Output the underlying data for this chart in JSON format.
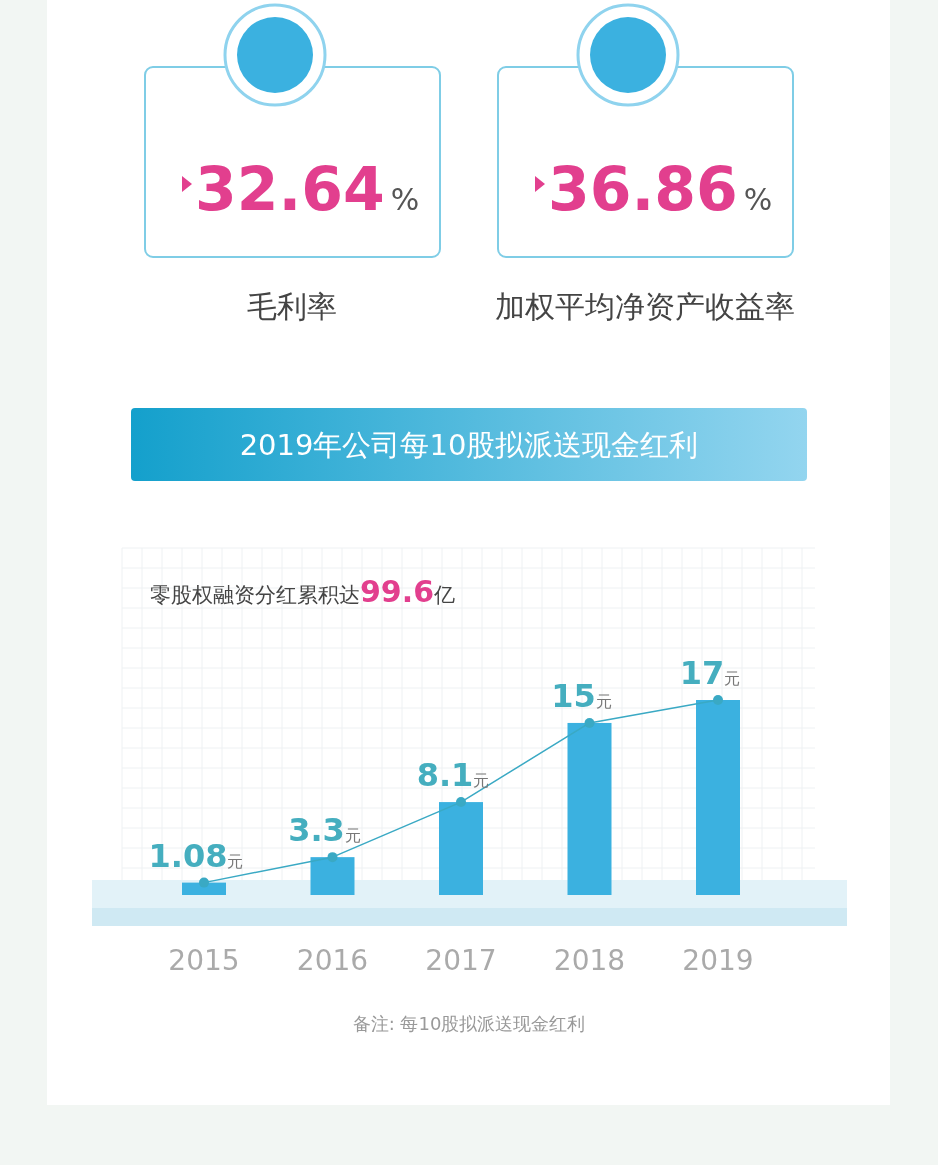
{
  "chart_data": [
    {
      "type": "other",
      "categories": [
        "毛利率",
        "加权平均净资产收益率"
      ],
      "values": [
        32.64,
        36.86
      ],
      "value_labels": [
        "32.64%",
        "36.86%"
      ]
    },
    {
      "type": "bar",
      "title": "2019年公司每10股拟派送现金红利",
      "subtitle": "零股权融资分红累积达99.6亿",
      "categories": [
        "2015",
        "2016",
        "2017",
        "2018",
        "2019"
      ],
      "grid": true,
      "annotations": [
        "备注: 每10股拟派送现金红利"
      ],
      "series": [
        {
          "type": "bar",
          "color": "#3bb1e0",
          "values": [
            1.08,
            3.3,
            8.1,
            15,
            17
          ],
          "value_labels": [
            "1.08元",
            "3.3元",
            "8.1元",
            "15元",
            "17元"
          ]
        },
        {
          "type": "line",
          "color": "#3aa9c4",
          "marker": "circle",
          "values": [
            1.08,
            3.3,
            8.1,
            15,
            17
          ]
        }
      ]
    }
  ]
}
